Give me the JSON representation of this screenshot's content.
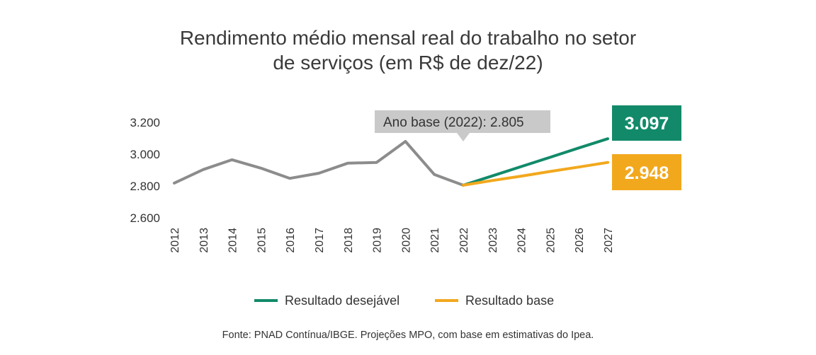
{
  "chart_data": {
    "type": "line",
    "title_line1": "Rendimento médio mensal real do trabalho no setor",
    "title_line2": "de serviços (em R$ de dez/22)",
    "x": [
      "2012",
      "2013",
      "2014",
      "2015",
      "2016",
      "2017",
      "2018",
      "2019",
      "2020",
      "2021",
      "2022",
      "2023",
      "2024",
      "2025",
      "2026",
      "2027"
    ],
    "y_ticks": [
      "2.600",
      "2.800",
      "3.000",
      "3.200"
    ],
    "ylim": [
      2600,
      3200
    ],
    "series": [
      {
        "key": "historical",
        "color": "#8c8c8c",
        "values": [
          2818,
          2903,
          2965,
          2912,
          2848,
          2880,
          2943,
          2948,
          3080,
          2872,
          2805,
          null,
          null,
          null,
          null,
          null
        ]
      },
      {
        "key": "desired",
        "name": "Resultado desejável",
        "color": "#128a6a",
        "values": [
          null,
          null,
          null,
          null,
          null,
          null,
          null,
          null,
          null,
          null,
          2805,
          2863,
          2922,
          2980,
          3039,
          3097
        ]
      },
      {
        "key": "base",
        "name": "Resultado base",
        "color": "#f2a81d",
        "values": [
          null,
          null,
          null,
          null,
          null,
          null,
          null,
          null,
          null,
          null,
          2805,
          2834,
          2862,
          2891,
          2919,
          2948
        ]
      }
    ],
    "annotations": {
      "base_year_label": "Ano base (2022):  2.805",
      "desired_end_label": "3.097",
      "base_end_label": "2.948"
    },
    "legend": {
      "position": "bottom",
      "items": [
        "Resultado desejável",
        "Resultado base"
      ]
    },
    "grid": false
  },
  "source": "Fonte: PNAD Contínua/IBGE. Projeções MPO, com base em estimativas do Ipea."
}
